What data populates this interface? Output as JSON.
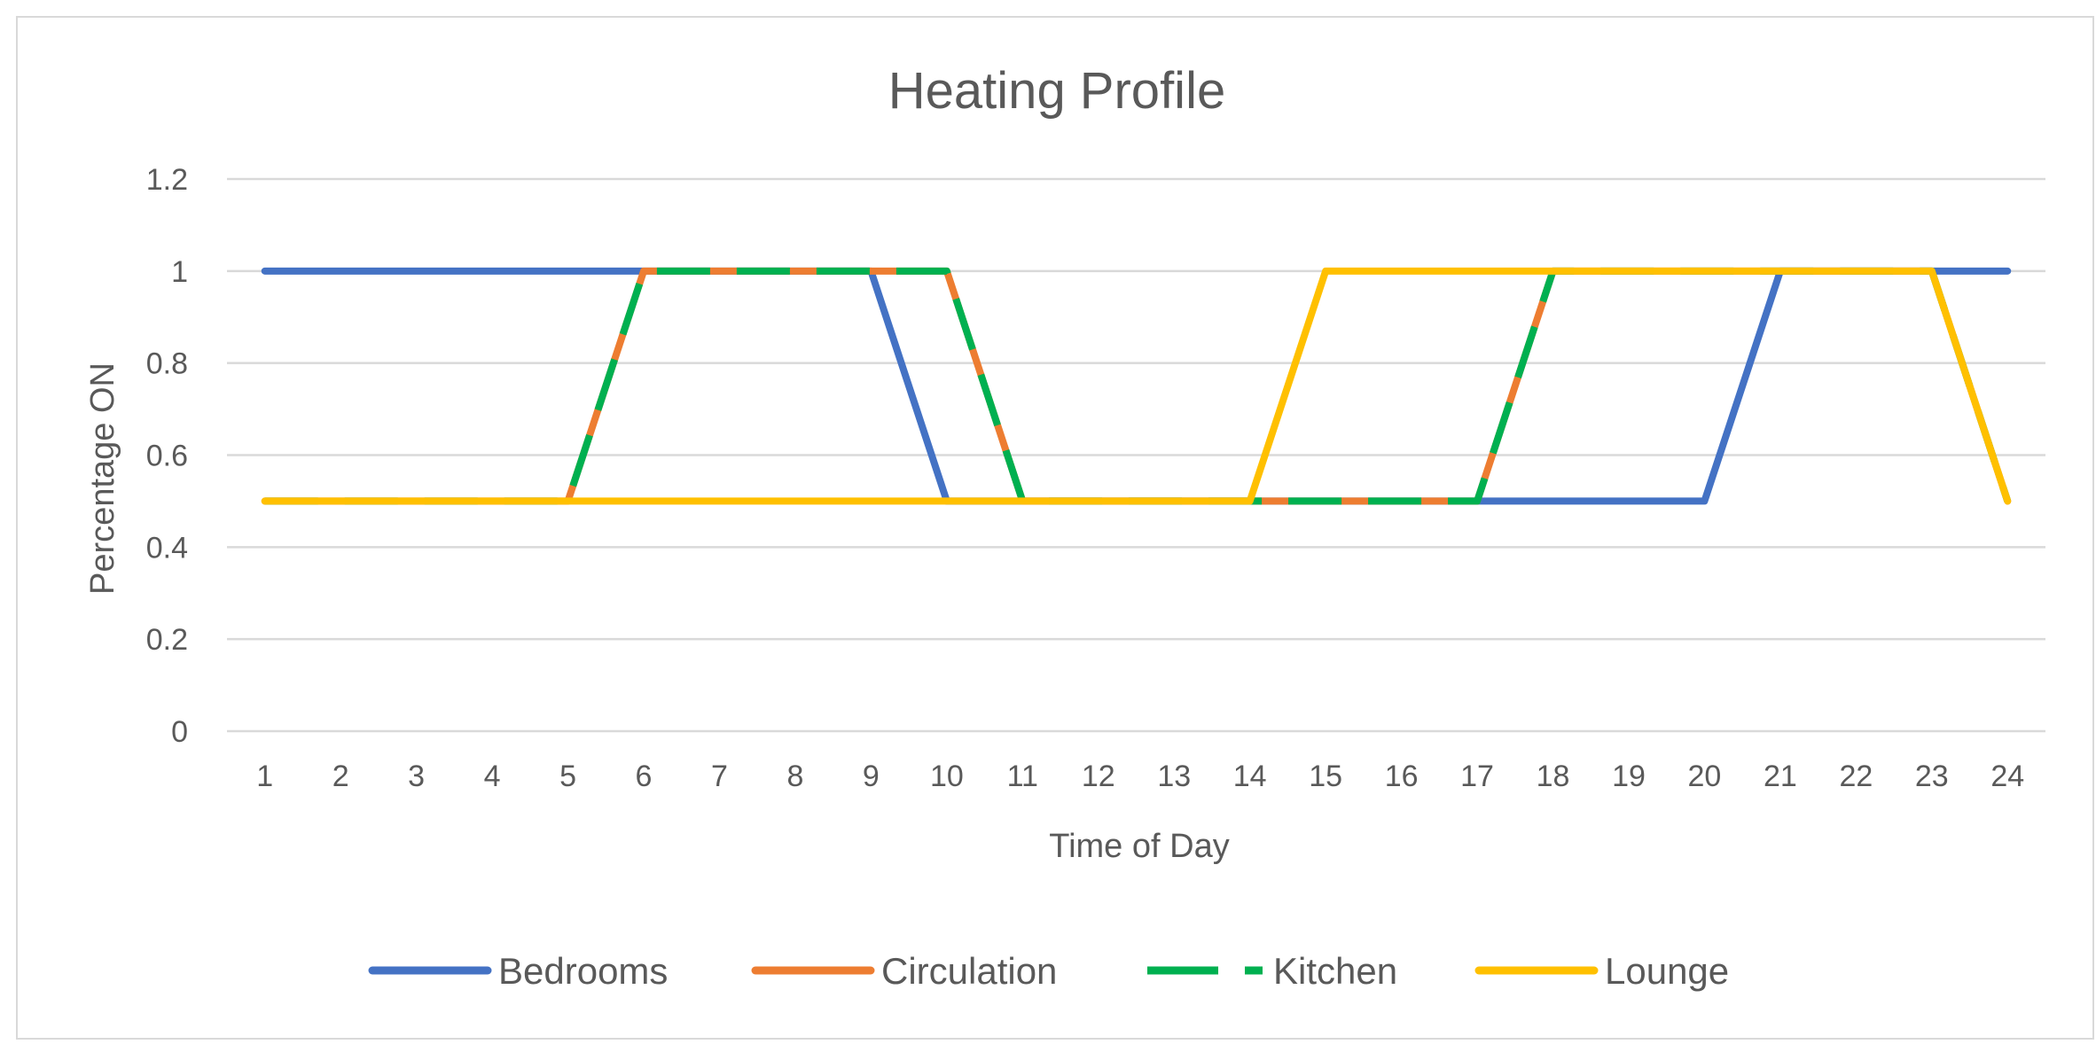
{
  "chart_data": {
    "type": "line",
    "title": "Heating Profile",
    "xlabel": "Time of Day",
    "ylabel": "Percentage ON",
    "categories": [
      "1",
      "2",
      "3",
      "4",
      "5",
      "6",
      "7",
      "8",
      "9",
      "10",
      "11",
      "12",
      "13",
      "14",
      "15",
      "16",
      "17",
      "18",
      "19",
      "20",
      "21",
      "22",
      "23",
      "24"
    ],
    "ylim": [
      0,
      1.2
    ],
    "yticks": [
      "0",
      "0.2",
      "0.4",
      "0.6",
      "0.8",
      "1",
      "1.2"
    ],
    "ytick_values": [
      0,
      0.2,
      0.4,
      0.6,
      0.8,
      1,
      1.2
    ],
    "grid": true,
    "legend_position": "bottom",
    "series": [
      {
        "name": "Bedrooms",
        "color": "#4472C4",
        "dash": "solid",
        "values": [
          1,
          1,
          1,
          1,
          1,
          1,
          1,
          1,
          1,
          0.5,
          0.5,
          0.5,
          0.5,
          0.5,
          0.5,
          0.5,
          0.5,
          0.5,
          0.5,
          0.5,
          1,
          1,
          1,
          1
        ]
      },
      {
        "name": "Circulation",
        "color": "#ED7D31",
        "dash": "solid",
        "values": [
          0.5,
          0.5,
          0.5,
          0.5,
          0.5,
          1,
          1,
          1,
          1,
          1,
          0.5,
          0.5,
          0.5,
          0.5,
          0.5,
          0.5,
          0.5,
          1,
          1,
          1,
          1,
          1,
          1,
          0.5
        ]
      },
      {
        "name": "Kitchen",
        "color": "#00B050",
        "dash": "dashed",
        "values": [
          0.5,
          0.5,
          0.5,
          0.5,
          0.5,
          1,
          1,
          1,
          1,
          1,
          0.5,
          0.5,
          0.5,
          0.5,
          0.5,
          0.5,
          0.5,
          1,
          1,
          1,
          1,
          1,
          1,
          0.5
        ]
      },
      {
        "name": "Lounge",
        "color": "#FFC000",
        "dash": "solid",
        "values": [
          0.5,
          0.5,
          0.5,
          0.5,
          0.5,
          0.5,
          0.5,
          0.5,
          0.5,
          0.5,
          0.5,
          0.5,
          0.5,
          0.5,
          1,
          1,
          1,
          1,
          1,
          1,
          1,
          1,
          1,
          0.5
        ]
      }
    ]
  }
}
